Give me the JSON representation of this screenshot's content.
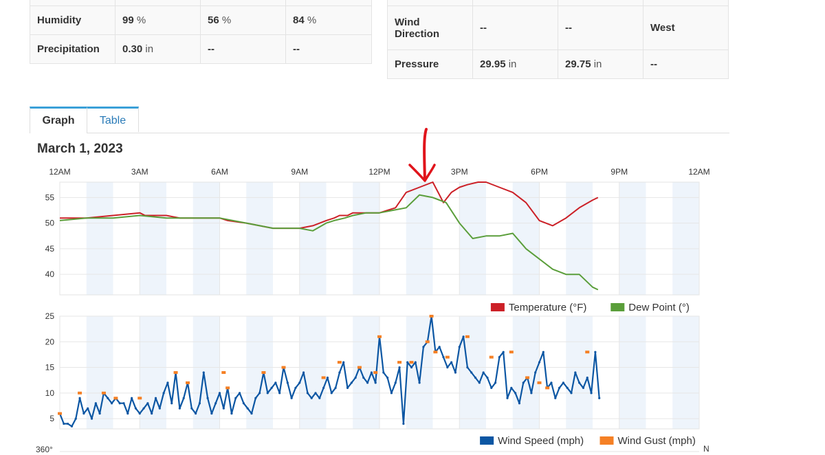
{
  "conditions_left": [
    {
      "label": "Humidity",
      "values": [
        {
          "num": "99",
          "unit": "%"
        },
        {
          "num": "56",
          "unit": "%"
        },
        {
          "num": "84",
          "unit": "%"
        }
      ]
    },
    {
      "label": "Precipitation",
      "values": [
        {
          "num": "0.30",
          "unit": "in"
        },
        {
          "num": "--",
          "unit": ""
        },
        {
          "num": "--",
          "unit": ""
        }
      ]
    }
  ],
  "conditions_right": [
    {
      "label": "Wind Direction",
      "values": [
        {
          "num": "--",
          "unit": ""
        },
        {
          "num": "--",
          "unit": ""
        },
        {
          "num": "West",
          "unit": ""
        }
      ]
    },
    {
      "label": "Pressure",
      "values": [
        {
          "num": "29.95",
          "unit": "in"
        },
        {
          "num": "29.75",
          "unit": "in"
        },
        {
          "num": "--",
          "unit": ""
        }
      ]
    }
  ],
  "tabs": {
    "graph": "Graph",
    "table": "Table"
  },
  "date_title": "March 1, 2023",
  "colors": {
    "temperature": "#cc2027",
    "dewpoint": "#5a9e3a",
    "wind_speed": "#0b56a3",
    "wind_gust": "#f58025",
    "band": "#eef4fb",
    "grid": "#e6e6e6",
    "annotation": "#e0141b"
  },
  "chart_data": [
    {
      "type": "line",
      "x_ticks": [
        "12AM",
        "3AM",
        "6AM",
        "9AM",
        "12PM",
        "3PM",
        "6PM",
        "9PM",
        "12AM"
      ],
      "xlim_hours": [
        0,
        24
      ],
      "ylim": [
        36,
        58
      ],
      "y_ticks": [
        40,
        45,
        50,
        55
      ],
      "grid": true,
      "legend_position": "bottom-right",
      "series": [
        {
          "name": "Temperature (°F)",
          "x_hours": [
            0,
            0.5,
            1,
            2,
            2,
            3,
            3.2,
            4,
            4.5,
            5,
            6,
            6.3,
            7,
            7.5,
            8,
            8.5,
            9,
            9.5,
            10,
            10.3,
            10.5,
            10.8,
            11,
            11.2,
            11.5,
            11.8,
            12,
            12.3,
            12.6,
            13,
            13.5,
            14,
            14.2,
            14.4,
            14.7,
            15,
            15.3,
            15.7,
            16,
            16.5,
            17,
            17.5,
            18,
            18.5,
            19,
            19.5,
            20,
            20.2
          ],
          "values": [
            51,
            51,
            51,
            51.5,
            51.5,
            52,
            51.5,
            51.5,
            51,
            51,
            51,
            50.5,
            50,
            49.5,
            49,
            49,
            49,
            49.5,
            50.5,
            51,
            51.5,
            51.5,
            52,
            52,
            52,
            52,
            52,
            52.5,
            53,
            56,
            57,
            58,
            56,
            54,
            56,
            57,
            57.5,
            58,
            58,
            57,
            56,
            54,
            50.5,
            49.5,
            51,
            53,
            54.5,
            55
          ]
        },
        {
          "name": "Dew Point (°)",
          "x_hours": [
            0,
            1,
            2,
            3,
            4,
            5,
            6,
            7,
            8,
            9,
            9.5,
            10,
            10.3,
            10.7,
            11,
            11.5,
            12,
            12.5,
            13,
            13.5,
            14,
            14.5,
            15,
            15.5,
            16,
            16.5,
            17,
            17.5,
            18,
            18.5,
            19,
            19.5,
            20,
            20.2
          ],
          "values": [
            50.5,
            51,
            51,
            51.5,
            51,
            51,
            51,
            50,
            49,
            49,
            48.5,
            50,
            50.5,
            51,
            51.5,
            52,
            52,
            52.5,
            53,
            55.5,
            55,
            54,
            50,
            47,
            47.5,
            47.5,
            48,
            45,
            43,
            41,
            40,
            40,
            37.5,
            37
          ]
        }
      ]
    },
    {
      "type": "line",
      "xlim_hours": [
        0,
        24
      ],
      "ylim": [
        3,
        25
      ],
      "y_ticks": [
        5,
        10,
        15,
        20,
        25
      ],
      "grid": true,
      "legend_position": "bottom-right",
      "series": [
        {
          "name": "Wind Speed (mph)",
          "x_hours": [
            0,
            0.15,
            0.3,
            0.45,
            0.6,
            0.75,
            0.9,
            1.05,
            1.2,
            1.35,
            1.5,
            1.65,
            1.8,
            1.95,
            2.1,
            2.25,
            2.4,
            2.55,
            2.7,
            2.85,
            3,
            3.15,
            3.3,
            3.45,
            3.6,
            3.75,
            3.9,
            4.05,
            4.2,
            4.35,
            4.5,
            4.65,
            4.8,
            4.95,
            5.1,
            5.25,
            5.4,
            5.55,
            5.7,
            5.85,
            6,
            6.15,
            6.3,
            6.45,
            6.6,
            6.75,
            6.9,
            7.05,
            7.2,
            7.35,
            7.5,
            7.65,
            7.8,
            7.95,
            8.1,
            8.25,
            8.4,
            8.55,
            8.7,
            8.85,
            9,
            9.15,
            9.3,
            9.45,
            9.6,
            9.75,
            9.9,
            10.05,
            10.2,
            10.35,
            10.5,
            10.65,
            10.8,
            10.95,
            11.1,
            11.25,
            11.4,
            11.55,
            11.7,
            11.85,
            12,
            12.15,
            12.3,
            12.45,
            12.6,
            12.75,
            12.9,
            13.05,
            13.2,
            13.35,
            13.5,
            13.65,
            13.8,
            13.95,
            14.1,
            14.25,
            14.4,
            14.55,
            14.7,
            14.85,
            15,
            15.15,
            15.3,
            15.45,
            15.6,
            15.75,
            15.9,
            16.05,
            16.2,
            16.35,
            16.5,
            16.65,
            16.8,
            16.95,
            17.1,
            17.25,
            17.4,
            17.55,
            17.7,
            17.85,
            18,
            18.15,
            18.3,
            18.45,
            18.6,
            18.75,
            18.9,
            19.05,
            19.2,
            19.35,
            19.5,
            19.65,
            19.8,
            19.95,
            20.1,
            20.25
          ],
          "values": [
            6,
            4,
            4,
            3.5,
            5,
            9,
            6,
            7,
            5,
            8,
            6,
            10,
            9,
            8,
            9,
            8,
            8,
            6,
            9,
            7,
            6,
            7,
            8,
            6,
            9,
            7,
            10,
            12,
            8,
            14,
            7,
            9,
            12,
            7,
            6,
            8,
            14,
            9,
            6,
            8,
            10,
            7,
            11,
            6,
            9,
            10,
            8,
            7,
            6,
            9,
            10,
            14,
            10,
            11,
            12,
            10,
            15,
            12,
            9,
            11,
            12,
            14,
            10,
            9,
            10,
            9,
            11,
            13,
            10,
            11,
            14,
            16,
            11,
            12,
            13,
            15,
            13,
            12,
            14,
            12,
            21,
            14,
            13,
            10,
            12,
            15,
            4,
            16,
            15,
            16,
            12,
            19,
            20,
            25,
            18,
            19,
            17,
            15,
            16,
            14,
            19,
            21,
            15,
            14,
            13,
            12,
            14,
            13,
            11,
            12,
            17,
            18,
            9,
            11,
            10,
            8,
            12,
            13,
            10,
            14,
            16,
            18,
            11,
            12,
            9,
            11,
            12,
            11,
            10,
            14,
            12,
            11,
            13,
            10,
            18,
            9
          ]
        },
        {
          "name": "Wind Gust (mph)",
          "x_hours": [
            0,
            0.75,
            1.65,
            2.1,
            3,
            4.35,
            4.8,
            6.15,
            6.3,
            7.65,
            8.4,
            9.9,
            10.5,
            11.25,
            11.85,
            12,
            12.75,
            13.2,
            13.8,
            13.95,
            14.1,
            14.55,
            15.3,
            16.2,
            16.95,
            17.55,
            18,
            18.3,
            19.8
          ],
          "values": [
            6,
            10,
            10,
            9,
            9,
            14,
            12,
            14,
            11,
            14,
            15,
            13,
            16,
            15,
            14,
            21,
            16,
            16,
            20,
            25,
            18,
            17,
            21,
            17,
            18,
            13,
            12,
            11,
            18
          ]
        }
      ]
    }
  ],
  "legend_bottom_right": "N",
  "y_top_label_third": "360°"
}
